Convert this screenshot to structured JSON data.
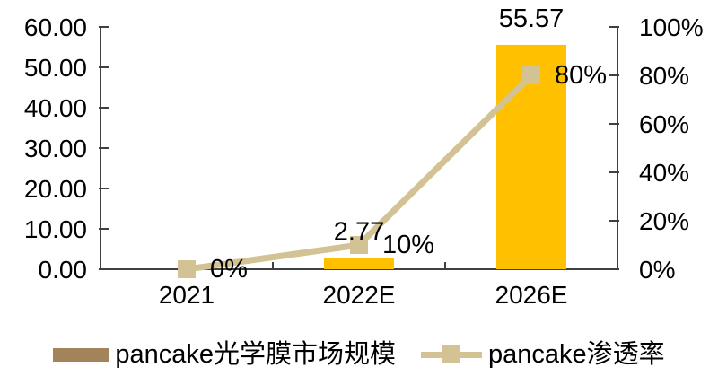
{
  "chart_data": {
    "type": "combo-bar-line",
    "title": "",
    "categories": [
      "2021",
      "2022E",
      "2026E"
    ],
    "series": [
      {
        "name": "pancake光学膜市场规模",
        "type": "bar",
        "axis": "left",
        "values": [
          0,
          2.77,
          55.57
        ],
        "data_labels": [
          "",
          "2.77",
          "55.57"
        ],
        "color": "#FFC000",
        "legend_color": "#A2835A"
      },
      {
        "name": "pancake渗透率",
        "type": "line",
        "axis": "right",
        "marker": "square",
        "values": [
          0,
          10,
          80
        ],
        "data_labels": [
          "0%",
          "10%",
          "80%"
        ],
        "color": "#D3C294",
        "legend_color": "#D3C294"
      }
    ],
    "left_axis": {
      "min": 0,
      "max": 60,
      "step": 10,
      "tick_labels": [
        "0.00",
        "10.00",
        "20.00",
        "30.00",
        "40.00",
        "50.00",
        "60.00"
      ]
    },
    "right_axis": {
      "min": 0,
      "max": 100,
      "step": 20,
      "tick_labels": [
        "0%",
        "20%",
        "40%",
        "60%",
        "80%",
        "100%"
      ]
    },
    "grid": false,
    "legend_position": "bottom",
    "axis_color": "#404040",
    "text_color": "#000000",
    "background": "#ffffff"
  }
}
